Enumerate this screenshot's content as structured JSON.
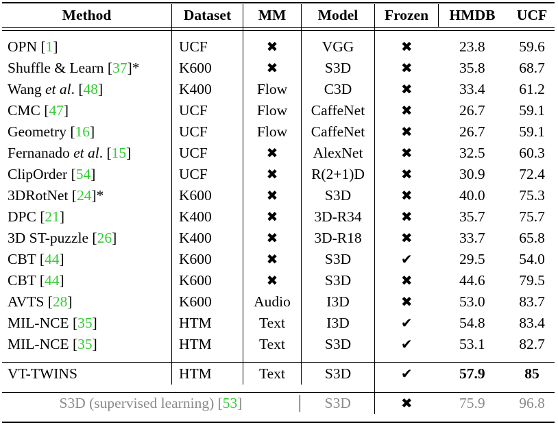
{
  "table": {
    "headers": [
      "Method",
      "Dataset",
      "MM",
      "Model",
      "Frozen",
      "HMDB",
      "UCF"
    ],
    "rows": [
      {
        "method": "OPN",
        "ref": "1",
        "suffix": "",
        "dataset": "UCF",
        "mm": "✖",
        "model": "VGG",
        "frozen": "✖",
        "hmdb": "23.8",
        "ucf": "59.6"
      },
      {
        "method": "Shuffle & Learn",
        "ref": "37",
        "suffix": "*",
        "dataset": "K600",
        "mm": "✖",
        "model": "S3D",
        "frozen": "✖",
        "hmdb": "35.8",
        "ucf": "68.7"
      },
      {
        "method": "Wang et al.",
        "ref": "48",
        "suffix": "",
        "dataset": "K400",
        "mm": "Flow",
        "model": "C3D",
        "frozen": "✖",
        "hmdb": "33.4",
        "ucf": "61.2"
      },
      {
        "method": "CMC",
        "ref": "47",
        "suffix": "",
        "dataset": "UCF",
        "mm": "Flow",
        "model": "CaffeNet",
        "frozen": "✖",
        "hmdb": "26.7",
        "ucf": "59.1"
      },
      {
        "method": "Geometry",
        "ref": "16",
        "suffix": "",
        "dataset": "UCF",
        "mm": "Flow",
        "model": "CaffeNet",
        "frozen": "✖",
        "hmdb": "26.7",
        "ucf": "59.1"
      },
      {
        "method": "Fernanado et al.",
        "ref": "15",
        "suffix": "",
        "dataset": "UCF",
        "mm": "✖",
        "model": "AlexNet",
        "frozen": "✖",
        "hmdb": "32.5",
        "ucf": "60.3"
      },
      {
        "method": "ClipOrder",
        "ref": "54",
        "suffix": "",
        "dataset": "UCF",
        "mm": "✖",
        "model": "R(2+1)D",
        "frozen": "✖",
        "hmdb": "30.9",
        "ucf": "72.4"
      },
      {
        "method": "3DRotNet",
        "ref": "24",
        "suffix": "*",
        "dataset": "K600",
        "mm": "✖",
        "model": "S3D",
        "frozen": "✖",
        "hmdb": "40.0",
        "ucf": "75.3"
      },
      {
        "method": "DPC",
        "ref": "21",
        "suffix": "",
        "dataset": "K400",
        "mm": "✖",
        "model": "3D-R34",
        "frozen": "✖",
        "hmdb": "35.7",
        "ucf": "75.7"
      },
      {
        "method": "3D ST-puzzle",
        "ref": "26",
        "suffix": "",
        "dataset": "K400",
        "mm": "✖",
        "model": "3D-R18",
        "frozen": "✖",
        "hmdb": "33.7",
        "ucf": "65.8"
      },
      {
        "method": "CBT",
        "ref": "44",
        "suffix": "",
        "dataset": "K600",
        "mm": "✖",
        "model": "S3D",
        "frozen": "✔",
        "hmdb": "29.5",
        "ucf": "54.0"
      },
      {
        "method": "CBT",
        "ref": "44",
        "suffix": "",
        "dataset": "K600",
        "mm": "✖",
        "model": "S3D",
        "frozen": "✖",
        "hmdb": "44.6",
        "ucf": "79.5"
      },
      {
        "method": "AVTS",
        "ref": "28",
        "suffix": "",
        "dataset": "K600",
        "mm": "Audio",
        "model": "I3D",
        "frozen": "✖",
        "hmdb": "53.0",
        "ucf": "83.7"
      },
      {
        "method": "MIL-NCE",
        "ref": "35",
        "suffix": "",
        "dataset": "HTM",
        "mm": "Text",
        "model": "I3D",
        "frozen": "✔",
        "hmdb": "54.8",
        "ucf": "83.4"
      },
      {
        "method": "MIL-NCE",
        "ref": "35",
        "suffix": "",
        "dataset": "HTM",
        "mm": "Text",
        "model": "S3D",
        "frozen": "✔",
        "hmdb": "53.1",
        "ucf": "82.7"
      }
    ],
    "ours": {
      "method": "VT-TWINS",
      "dataset": "HTM",
      "mm": "Text",
      "model": "S3D",
      "frozen": "✔",
      "hmdb": "57.9",
      "ucf": "85"
    },
    "supervised": {
      "method": "S3D (supervised learning)",
      "ref": "53",
      "model": "S3D",
      "frozen": "✖",
      "hmdb": "75.9",
      "ucf": "96.8"
    }
  }
}
